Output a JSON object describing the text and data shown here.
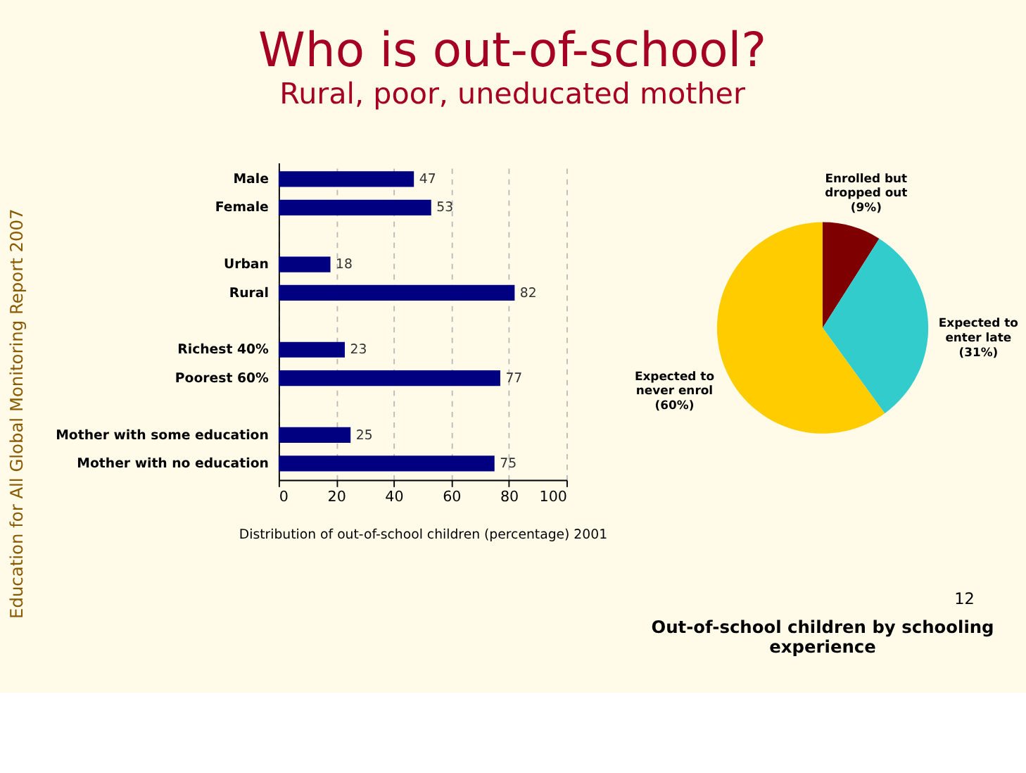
{
  "chart_data": [
    {
      "type": "bar",
      "orientation": "horizontal",
      "title": "Who is out-of-school?",
      "subtitle": "Rural, poor, uneducated mother",
      "categories": [
        "Male",
        "Female",
        null,
        "Urban",
        "Rural",
        null,
        "Richest 40%",
        "Poorest 60%",
        null,
        "Mother with some education",
        "Mother with no education"
      ],
      "values": [
        47,
        53,
        null,
        18,
        82,
        null,
        23,
        77,
        null,
        25,
        75
      ],
      "color": "#000080",
      "data_labels": true,
      "xlim": [
        0,
        100
      ],
      "xticks": [
        0,
        20,
        40,
        60,
        80,
        100
      ],
      "grid": "x",
      "xlabel": "Distribution of out-of-school children (percentage) 2001",
      "annotations": [
        "Education for All Global Monitoring Report 2007"
      ]
    },
    {
      "type": "pie",
      "title": "Out-of-school children by schooling experience",
      "categories": [
        "Enrolled but dropped out",
        "Expected to enter late",
        "Expected to never enrol"
      ],
      "values": [
        9,
        31,
        60
      ],
      "colors": [
        "#7f0000",
        "#33cccc",
        "#ffcc00"
      ],
      "value_labels": [
        "(9%)",
        "(31%)",
        "(60%)"
      ],
      "annotations": [
        "12"
      ]
    }
  ]
}
